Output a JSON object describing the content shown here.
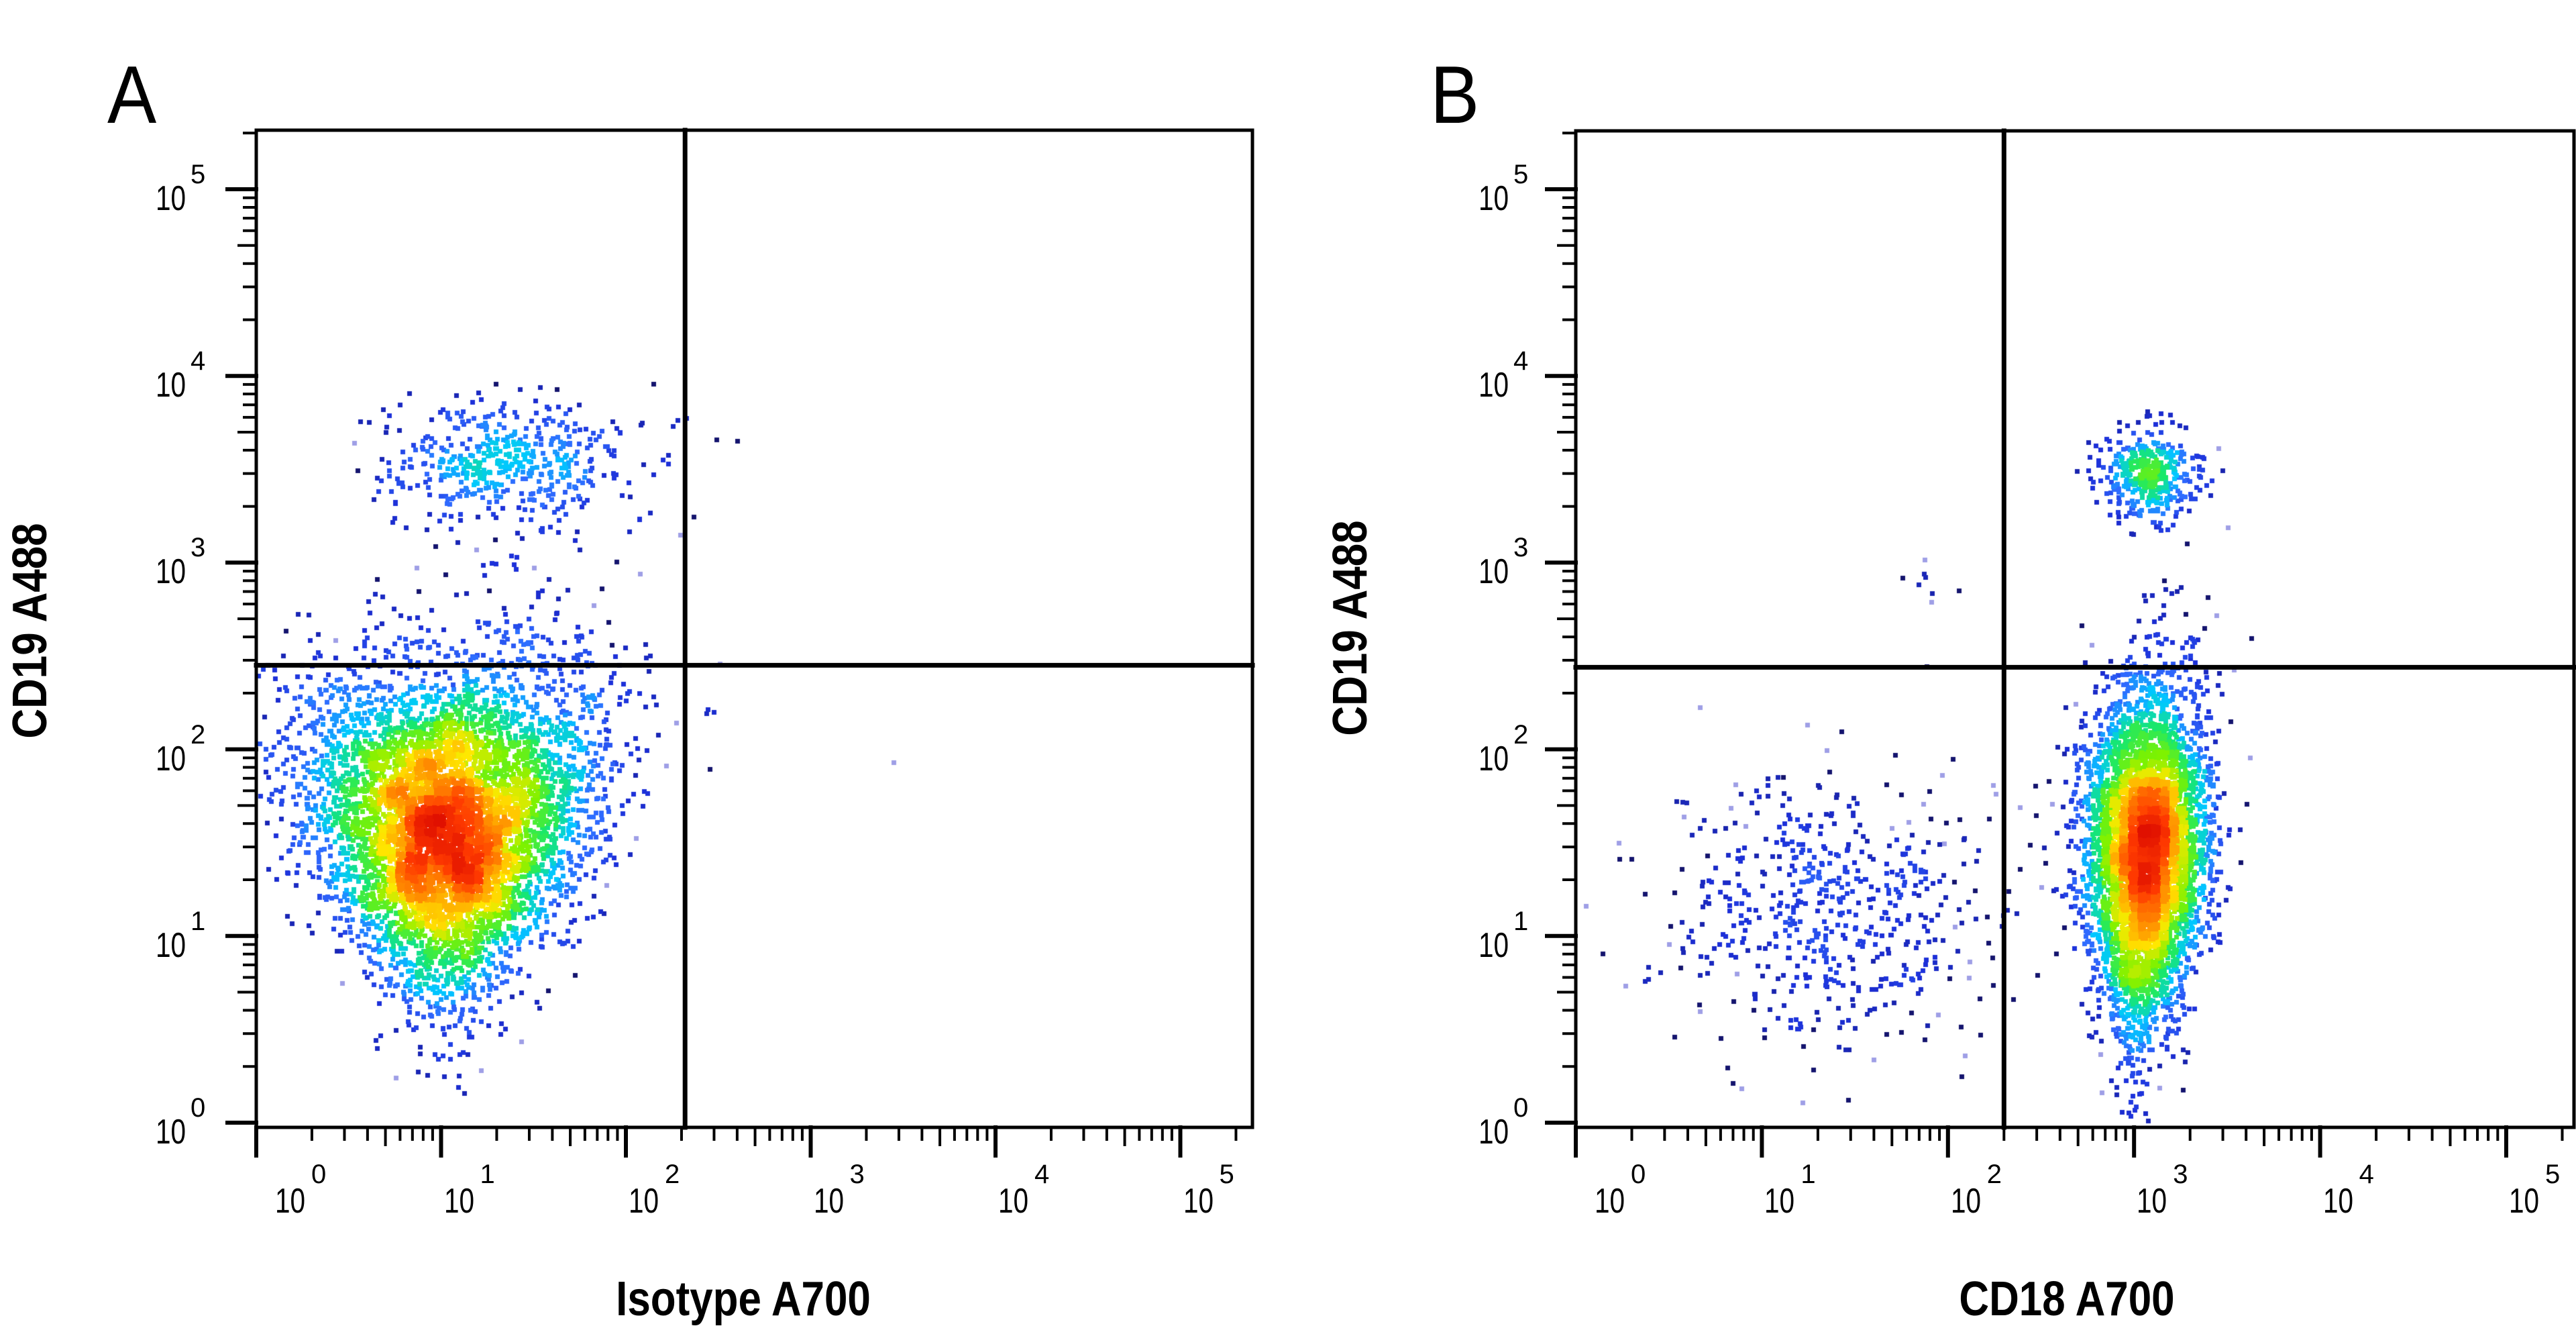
{
  "figure": {
    "panels": [
      {
        "letter": "A",
        "x_axis_title": "Isotype A700",
        "y_axis_title": "CD19 A488"
      },
      {
        "letter": "B",
        "x_axis_title": "CD18 A700",
        "y_axis_title": "CD19 A488"
      }
    ],
    "tick_base": "10",
    "tick_exponents": [
      "0",
      "1",
      "2",
      "3",
      "4",
      "5"
    ]
  },
  "colors": {
    "axis": "#000000",
    "background": "#ffffff",
    "density_scale": [
      "#14146e",
      "#1c2fd8",
      "#2f6bff",
      "#00c8ff",
      "#18e86a",
      "#7cf200",
      "#ffe800",
      "#ff9a00",
      "#ff3a00",
      "#e01000"
    ],
    "sparse_light": "#9f9fe6"
  },
  "chart_data": [
    {
      "type": "scatter",
      "subtype": "flow-cytometry-pseudocolor-dot-plot",
      "panel": "A",
      "title": "",
      "xlabel": "Isotype A700",
      "ylabel": "CD19 A488",
      "xscale": "log",
      "yscale": "log",
      "xlim": [
        1,
        245000
      ],
      "ylim": [
        0.94,
        210000
      ],
      "x_ticks": [
        "10^0",
        "10^1",
        "10^2",
        "10^3",
        "10^4",
        "10^5"
      ],
      "y_ticks": [
        "10^0",
        "10^1",
        "10^2",
        "10^3",
        "10^4",
        "10^5"
      ],
      "grid": false,
      "legend": null,
      "quadrant_gate": {
        "x": 209,
        "y": 282
      },
      "populations": [
        {
          "name": "CD19- isotype- (lower-left)",
          "center_x": 11,
          "center_y": 40,
          "peak_x": 11,
          "peak_y": 45,
          "log_sd_x": 0.36,
          "log_sd_y": 0.42,
          "approx_events": 6500,
          "density": "high"
        },
        {
          "name": "CD19+ isotype- (upper-left)",
          "center_x": 22,
          "center_y": 3600,
          "log_sd_x": 0.34,
          "log_sd_y": 0.15,
          "approx_events": 520,
          "density": "low"
        },
        {
          "name": "stray events (right quadrants)",
          "points": [
            [
              400,
              4500
            ],
            [
              2800,
              85
            ]
          ],
          "approx_events": 2
        }
      ]
    },
    {
      "type": "scatter",
      "subtype": "flow-cytometry-pseudocolor-dot-plot",
      "panel": "B",
      "title": "",
      "xlabel": "CD18 A700",
      "ylabel": "CD19 A488",
      "xscale": "log",
      "yscale": "log",
      "xlim": [
        1,
        225000
      ],
      "ylim": [
        0.94,
        210000
      ],
      "x_ticks": [
        "10^0",
        "10^1",
        "10^2",
        "10^3",
        "10^4",
        "10^5"
      ],
      "y_ticks": [
        "10^0",
        "10^1",
        "10^2",
        "10^3",
        "10^4",
        "10^5"
      ],
      "grid": false,
      "legend": null,
      "quadrant_gate": {
        "x": 200,
        "y": 275
      },
      "populations": [
        {
          "name": "CD18+ CD19- (lower-right)",
          "center_x": 1150,
          "center_y": 28,
          "peak_x": 1300,
          "peak_y": 33,
          "log_sd_x": 0.16,
          "log_sd_y": 0.45,
          "approx_events": 5200,
          "density": "high"
        },
        {
          "name": "CD18+ CD19+ (upper-right)",
          "center_x": 1200,
          "center_y": 3000,
          "log_sd_x": 0.13,
          "log_sd_y": 0.13,
          "approx_events": 420,
          "density": "medium"
        },
        {
          "name": "CD18- CD19- (lower-left)",
          "center_x": 22,
          "center_y": 14,
          "log_sd_x": 0.42,
          "log_sd_y": 0.38,
          "approx_events": 560,
          "density": "low"
        },
        {
          "name": "CD18- CD19+ (upper-left, few)",
          "center_x": 75,
          "center_y": 750,
          "log_sd_x": 0.08,
          "log_sd_y": 0.1,
          "approx_events": 8,
          "density": "very low"
        }
      ]
    }
  ]
}
